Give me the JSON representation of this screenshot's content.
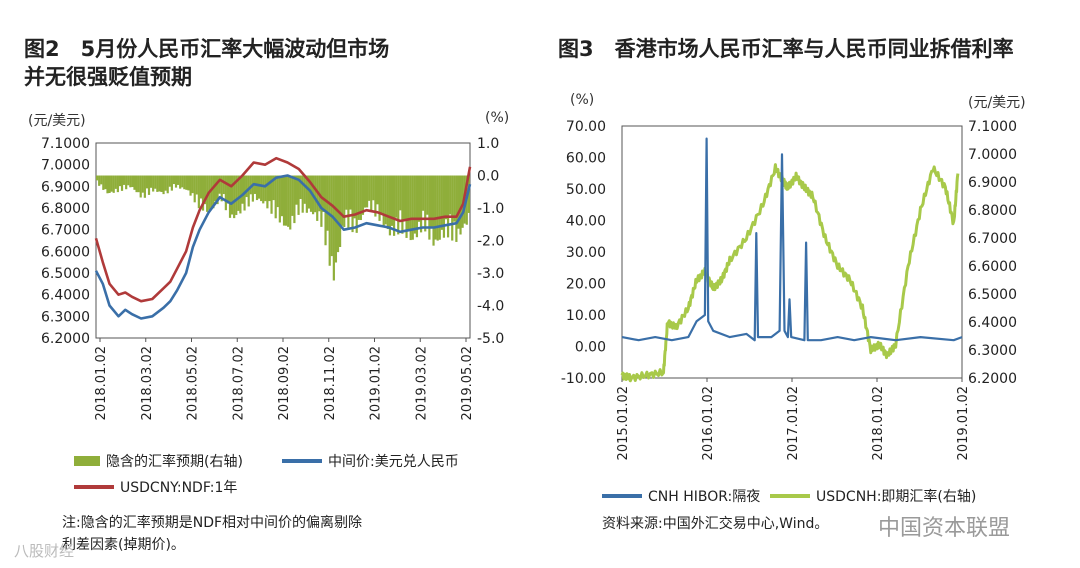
{
  "left": {
    "title_line1": "图2　5月份人民币汇率大幅波动但市场",
    "title_line2": "并无很强贬值预期",
    "unit_left": "(元/美元)",
    "unit_right": "(%)",
    "legend": {
      "implied": "隐含的汇率预期(右轴)",
      "central": "中间价:美元兑人民币",
      "ndf": "USDCNY:NDF:1年"
    },
    "note_line1": "注:隐含的汇率预期是NDF相对中间价的偏离剔除",
    "note_line2": "利差因素(掉期价)。",
    "watermark": "八股财经",
    "colors": {
      "implied": "#8fae3a",
      "central": "#3a6fa8",
      "ndf": "#b03a3a"
    }
  },
  "right": {
    "title": "图3　香港市场人民币汇率与人民币同业拆借利率",
    "unit_left": "(%)",
    "unit_right": "(元/美元)",
    "legend": {
      "hibor": "CNH HIBOR:隔夜",
      "usdcnh": "USDCNH:即期汇率(右轴)"
    },
    "source": "资料来源:中国外汇交易中心,Wind。",
    "watermark": "中国资本联盟",
    "colors": {
      "hibor": "#3a6fa8",
      "usdcnh": "#a8c94a"
    }
  },
  "chart_data": [
    {
      "type": "line",
      "title": "5月份人民币汇率大幅波动但市场并无很强贬值预期",
      "x_ticks": [
        "2018.01.02",
        "2018.03.02",
        "2018.05.02",
        "2018.07.02",
        "2018.09.02",
        "2018.11.02",
        "2019.01.02",
        "2019.03.02",
        "2019.05.02"
      ],
      "y_left": {
        "label": "(元/美元)",
        "ticks": [
          "6.2000",
          "6.3000",
          "6.4000",
          "6.5000",
          "6.6000",
          "6.7000",
          "6.8000",
          "6.9000",
          "7.0000",
          "7.1000"
        ],
        "lim": [
          6.2,
          7.1
        ]
      },
      "y_right": {
        "label": "(%)",
        "ticks": [
          "-5.0",
          "-4.0",
          "-3.0",
          "-2.0",
          "-1.0",
          "0.0",
          "1.0"
        ],
        "lim": [
          -5.0,
          1.0
        ]
      },
      "series": [
        {
          "name": "中间价:美元兑人民币",
          "axis": "left",
          "x": [
            0,
            0.3,
            0.6,
            1,
            1.3,
            1.6,
            2,
            2.5,
            3,
            3.3,
            3.6,
            4,
            4.3,
            4.6,
            5,
            5.5,
            6,
            6.5,
            7,
            7.5,
            8,
            8.5,
            9,
            9.5,
            10,
            10.5,
            11,
            11.5,
            12,
            12.5,
            13,
            13.5,
            14,
            14.5,
            15,
            15.5,
            16,
            16.3,
            16.6
          ],
          "y": [
            6.51,
            6.45,
            6.35,
            6.3,
            6.33,
            6.31,
            6.29,
            6.3,
            6.34,
            6.37,
            6.42,
            6.5,
            6.62,
            6.7,
            6.78,
            6.85,
            6.82,
            6.86,
            6.91,
            6.9,
            6.94,
            6.95,
            6.93,
            6.88,
            6.8,
            6.76,
            6.7,
            6.71,
            6.73,
            6.72,
            6.71,
            6.69,
            6.7,
            6.71,
            6.71,
            6.72,
            6.73,
            6.78,
            6.91
          ]
        },
        {
          "name": "USDCNY:NDF:1年",
          "axis": "left",
          "x": [
            0,
            0.3,
            0.6,
            1,
            1.3,
            1.6,
            2,
            2.5,
            3,
            3.3,
            3.6,
            4,
            4.3,
            4.6,
            5,
            5.5,
            6,
            6.5,
            7,
            7.5,
            8,
            8.5,
            9,
            9.5,
            10,
            10.5,
            11,
            11.5,
            12,
            12.5,
            13,
            13.5,
            14,
            14.5,
            15,
            15.5,
            16,
            16.3,
            16.6
          ],
          "y": [
            6.66,
            6.55,
            6.45,
            6.4,
            6.41,
            6.39,
            6.37,
            6.38,
            6.43,
            6.46,
            6.52,
            6.6,
            6.71,
            6.79,
            6.87,
            6.93,
            6.9,
            6.95,
            7.01,
            7.0,
            7.03,
            7.01,
            6.98,
            6.92,
            6.85,
            6.81,
            6.76,
            6.77,
            6.79,
            6.78,
            6.76,
            6.74,
            6.75,
            6.75,
            6.75,
            6.76,
            6.76,
            6.82,
            6.99
          ]
        },
        {
          "name": "隐含的汇率预期(右轴)",
          "axis": "right",
          "style": "bar",
          "x": [
            0,
            0.5,
            1,
            1.5,
            2,
            2.5,
            3,
            3.5,
            4,
            4.5,
            5,
            5.5,
            6,
            6.5,
            7,
            7.5,
            8,
            8.5,
            9,
            9.5,
            10,
            10.5,
            11,
            11.5,
            12,
            12.5,
            13,
            13.5,
            14,
            14.5,
            15,
            15.5,
            16,
            16.5
          ],
          "y": [
            -0.2,
            -0.5,
            -0.4,
            -0.3,
            -0.6,
            -0.4,
            -0.5,
            -0.3,
            -0.4,
            -0.8,
            -1.0,
            -0.6,
            -1.2,
            -0.9,
            -0.6,
            -0.8,
            -1.1,
            -1.5,
            -0.9,
            -1.0,
            -1.3,
            -2.8,
            -1.2,
            -1.5,
            -0.8,
            -1.1,
            -1.6,
            -1.4,
            -1.8,
            -1.3,
            -1.9,
            -1.5,
            -1.7,
            -1.2
          ]
        }
      ]
    },
    {
      "type": "line",
      "title": "香港市场人民币汇率与人民币同业拆借利率",
      "x_ticks": [
        "2015.01.02",
        "2016.01.02",
        "2017.01.02",
        "2018.01.02",
        "2019.01.02"
      ],
      "y_left": {
        "label": "(%)",
        "ticks": [
          "-10.00",
          "0.00",
          "10.00",
          "20.00",
          "30.00",
          "40.00",
          "50.00",
          "60.00",
          "70.00"
        ],
        "lim": [
          -10,
          70
        ]
      },
      "y_right": {
        "label": "(元/美元)",
        "ticks": [
          "6.2000",
          "6.3000",
          "6.4000",
          "6.5000",
          "6.6000",
          "6.7000",
          "6.8000",
          "6.9000",
          "7.0000",
          "7.1000"
        ],
        "lim": [
          6.2,
          7.1
        ]
      },
      "series": [
        {
          "name": "CNH HIBOR:隔夜",
          "axis": "left",
          "x": [
            2015.0,
            2015.2,
            2015.4,
            2015.6,
            2015.8,
            2015.9,
            2016.0,
            2016.02,
            2016.04,
            2016.1,
            2016.3,
            2016.5,
            2016.6,
            2016.62,
            2016.64,
            2016.8,
            2016.9,
            2016.93,
            2016.96,
            2017.0,
            2017.02,
            2017.04,
            2017.2,
            2017.22,
            2017.24,
            2017.4,
            2017.6,
            2017.8,
            2018.0,
            2018.3,
            2018.6,
            2019.0,
            2019.1
          ],
          "y": [
            3,
            2,
            3,
            2,
            3,
            8,
            10,
            66,
            8,
            5,
            3,
            4,
            2,
            36,
            3,
            3,
            5,
            61,
            5,
            3,
            15,
            3,
            2,
            33,
            2,
            2,
            3,
            2,
            3,
            2,
            3,
            2,
            3
          ]
        },
        {
          "name": "USDCNH:即期汇率(右轴)",
          "axis": "right",
          "x": [
            2015.0,
            2015.1,
            2015.3,
            2015.5,
            2015.55,
            2015.65,
            2015.8,
            2015.9,
            2016.0,
            2016.1,
            2016.2,
            2016.3,
            2016.5,
            2016.7,
            2016.85,
            2016.95,
            2017.0,
            2017.1,
            2017.2,
            2017.3,
            2017.45,
            2017.6,
            2017.75,
            2017.9,
            2018.0,
            2018.1,
            2018.2,
            2018.3,
            2018.45,
            2018.6,
            2018.75,
            2018.9,
            2019.0,
            2019.05
          ],
          "y": [
            6.21,
            6.2,
            6.21,
            6.22,
            6.4,
            6.38,
            6.45,
            6.55,
            6.58,
            6.52,
            6.55,
            6.62,
            6.7,
            6.82,
            6.95,
            6.9,
            6.88,
            6.92,
            6.88,
            6.85,
            6.7,
            6.6,
            6.55,
            6.45,
            6.3,
            6.32,
            6.28,
            6.32,
            6.6,
            6.8,
            6.95,
            6.88,
            6.75,
            6.93
          ]
        }
      ]
    }
  ]
}
